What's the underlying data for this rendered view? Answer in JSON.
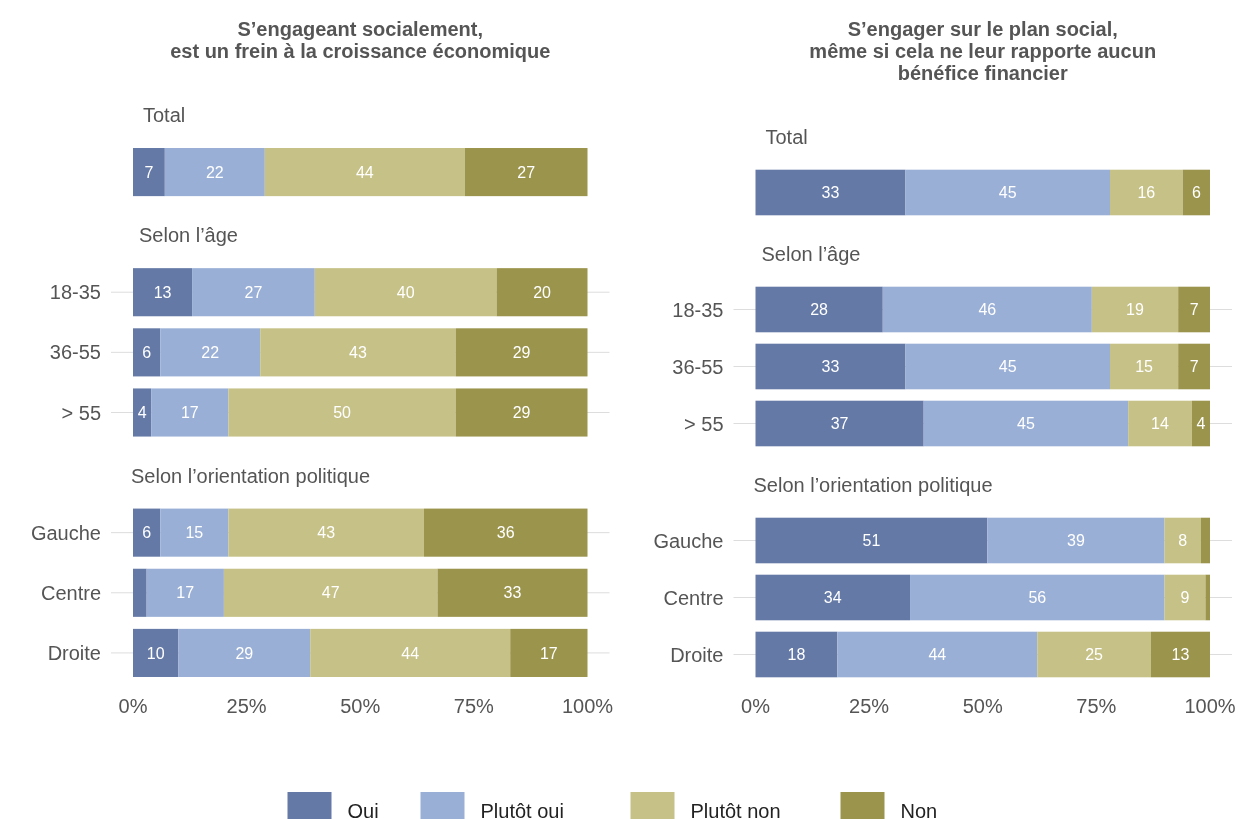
{
  "chart_data": [
    {
      "type": "bar",
      "orientation": "horizontal",
      "stacked": true,
      "title": "S’engageant socialement,\nest un frein à la croissance économique",
      "subtitle": "Total",
      "categories": [
        null
      ],
      "xlim": [
        0,
        100
      ],
      "tick_labels": "y",
      "series": [
        {
          "color": "#6479a6",
          "values": [
            7
          ],
          "value_labels": [
            "7"
          ]
        },
        {
          "color": "#9aafd6",
          "values": [
            22
          ],
          "value_labels": [
            "22"
          ]
        },
        {
          "color": "#c6c186",
          "values": [
            44
          ],
          "value_labels": [
            "44"
          ]
        },
        {
          "color": "#9b944c",
          "values": [
            27
          ],
          "value_labels": [
            "27"
          ]
        }
      ]
    },
    {
      "type": "bar",
      "orientation": "horizontal",
      "stacked": true,
      "subtitle": "Selon l’âge",
      "categories": [
        "18-35",
        "36-55",
        "> 55"
      ],
      "xlim": [
        0,
        100
      ],
      "tick_labels": "y",
      "grid": "y",
      "series": [
        {
          "color": "#6479a6",
          "values": [
            13,
            6,
            4
          ],
          "value_labels": [
            "13",
            "6",
            "4"
          ]
        },
        {
          "color": "#9aafd6",
          "values": [
            27,
            22,
            17
          ],
          "value_labels": [
            "27",
            "22",
            "17"
          ]
        },
        {
          "color": "#c6c186",
          "values": [
            40,
            43,
            50
          ],
          "value_labels": [
            "40",
            "43",
            "50"
          ]
        },
        {
          "color": "#9b944c",
          "values": [
            20,
            29,
            29
          ],
          "value_labels": [
            "20",
            "29",
            "29"
          ]
        }
      ]
    },
    {
      "type": "bar",
      "orientation": "horizontal",
      "stacked": true,
      "subtitle": "Selon l’orientation politique",
      "categories": [
        "Gauche",
        "Centre",
        "Droite"
      ],
      "xlim": [
        0,
        100
      ],
      "xticks": [
        {
          "value": 0,
          "label": "0%"
        },
        {
          "value": 25,
          "label": "25%"
        },
        {
          "value": 50,
          "label": "50%"
        },
        {
          "value": 75,
          "label": "75%"
        },
        {
          "value": 100,
          "label": "100%"
        }
      ],
      "grid": "y",
      "series": [
        {
          "color": "#6479a6",
          "values": [
            6,
            3,
            10
          ],
          "value_labels": [
            "6",
            null,
            "10"
          ]
        },
        {
          "color": "#9aafd6",
          "values": [
            15,
            17,
            29
          ],
          "value_labels": [
            "15",
            "17",
            "29"
          ]
        },
        {
          "color": "#c6c186",
          "values": [
            43,
            47,
            44
          ],
          "value_labels": [
            "43",
            "47",
            "44"
          ]
        },
        {
          "color": "#9b944c",
          "values": [
            36,
            33,
            17
          ],
          "value_labels": [
            "36",
            "33",
            "17"
          ]
        }
      ]
    },
    {
      "type": "bar",
      "orientation": "horizontal",
      "stacked": true,
      "title": "S’engager sur le plan social,\nmême si cela ne leur rapporte aucun\nbénéfice financier",
      "subtitle": "Total",
      "categories": [
        null
      ],
      "xlim": [
        0,
        100
      ],
      "tick_labels": "y",
      "series": [
        {
          "color": "#6479a6",
          "values": [
            33
          ],
          "value_labels": [
            "33"
          ]
        },
        {
          "color": "#9aafd6",
          "values": [
            45
          ],
          "value_labels": [
            "45"
          ]
        },
        {
          "color": "#c6c186",
          "values": [
            16
          ],
          "value_labels": [
            "16"
          ]
        },
        {
          "color": "#9b944c",
          "values": [
            6
          ],
          "value_labels": [
            "6"
          ]
        }
      ]
    },
    {
      "type": "bar",
      "orientation": "horizontal",
      "stacked": true,
      "subtitle": "Selon l’âge",
      "categories": [
        "18-35",
        "36-55",
        "> 55"
      ],
      "xlim": [
        0,
        100
      ],
      "tick_labels": "y",
      "grid": "y",
      "series": [
        {
          "color": "#6479a6",
          "values": [
            28,
            33,
            37
          ],
          "value_labels": [
            "28",
            "33",
            "37"
          ]
        },
        {
          "color": "#9aafd6",
          "values": [
            46,
            45,
            45
          ],
          "value_labels": [
            "46",
            "45",
            "45"
          ]
        },
        {
          "color": "#c6c186",
          "values": [
            19,
            15,
            14
          ],
          "value_labels": [
            "19",
            "15",
            "14"
          ]
        },
        {
          "color": "#9b944c",
          "values": [
            7,
            7,
            4
          ],
          "value_labels": [
            "7",
            "7",
            "4"
          ]
        }
      ]
    },
    {
      "type": "bar",
      "orientation": "horizontal",
      "stacked": true,
      "subtitle": "Selon l’orientation politique",
      "categories": [
        "Gauche",
        "Centre",
        "Droite"
      ],
      "xlim": [
        0,
        100
      ],
      "xticks": [
        {
          "value": 0,
          "label": "0%"
        },
        {
          "value": 25,
          "label": "25%"
        },
        {
          "value": 50,
          "label": "50%"
        },
        {
          "value": 75,
          "label": "75%"
        },
        {
          "value": 100,
          "label": "100%"
        }
      ],
      "grid": "y",
      "legend": "bottom",
      "series": [
        {
          "name": "Oui",
          "color": "#6479a6",
          "values": [
            51,
            34,
            18
          ],
          "value_labels": [
            "51",
            "34",
            "18"
          ]
        },
        {
          "name": "Plutôt oui",
          "color": "#9aafd6",
          "values": [
            39,
            56,
            44
          ],
          "value_labels": [
            "39",
            "56",
            "44"
          ]
        },
        {
          "name": "Plutôt non",
          "color": "#c6c186",
          "values": [
            8,
            9,
            25
          ],
          "value_labels": [
            "8",
            "9",
            "25"
          ]
        },
        {
          "name": "Non",
          "color": "#9b944c",
          "values": [
            2,
            1,
            13
          ],
          "value_labels": [
            null,
            null,
            "13"
          ]
        }
      ]
    }
  ]
}
